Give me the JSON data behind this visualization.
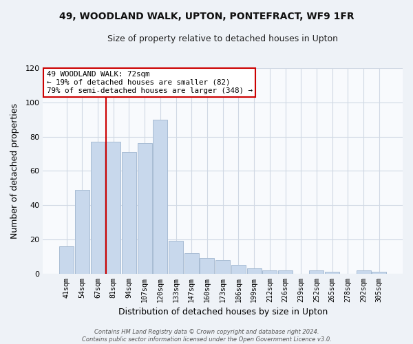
{
  "title": "49, WOODLAND WALK, UPTON, PONTEFRACT, WF9 1FR",
  "subtitle": "Size of property relative to detached houses in Upton",
  "xlabel": "Distribution of detached houses by size in Upton",
  "ylabel": "Number of detached properties",
  "bar_color": "#c8d8ec",
  "bar_edge_color": "#a8bcd4",
  "categories": [
    "41sqm",
    "54sqm",
    "67sqm",
    "81sqm",
    "94sqm",
    "107sqm",
    "120sqm",
    "133sqm",
    "147sqm",
    "160sqm",
    "173sqm",
    "186sqm",
    "199sqm",
    "212sqm",
    "226sqm",
    "239sqm",
    "252sqm",
    "265sqm",
    "278sqm",
    "292sqm",
    "305sqm"
  ],
  "values": [
    16,
    49,
    77,
    77,
    71,
    76,
    90,
    19,
    12,
    9,
    8,
    5,
    3,
    2,
    2,
    0,
    2,
    1,
    0,
    2,
    1
  ],
  "ylim": [
    0,
    120
  ],
  "yticks": [
    0,
    20,
    40,
    60,
    80,
    100,
    120
  ],
  "vline_index": 3,
  "vline_color": "#cc0000",
  "annotation_line1": "49 WOODLAND WALK: 72sqm",
  "annotation_line2": "← 19% of detached houses are smaller (82)",
  "annotation_line3": "79% of semi-detached houses are larger (348) →",
  "annotation_box_color": "#ffffff",
  "annotation_box_edge": "#cc0000",
  "footer_text": "Contains HM Land Registry data © Crown copyright and database right 2024.\nContains public sector information licensed under the Open Government Licence v3.0.",
  "background_color": "#eef2f7",
  "plot_background_color": "#f8fafd",
  "grid_color": "#d0d8e4"
}
